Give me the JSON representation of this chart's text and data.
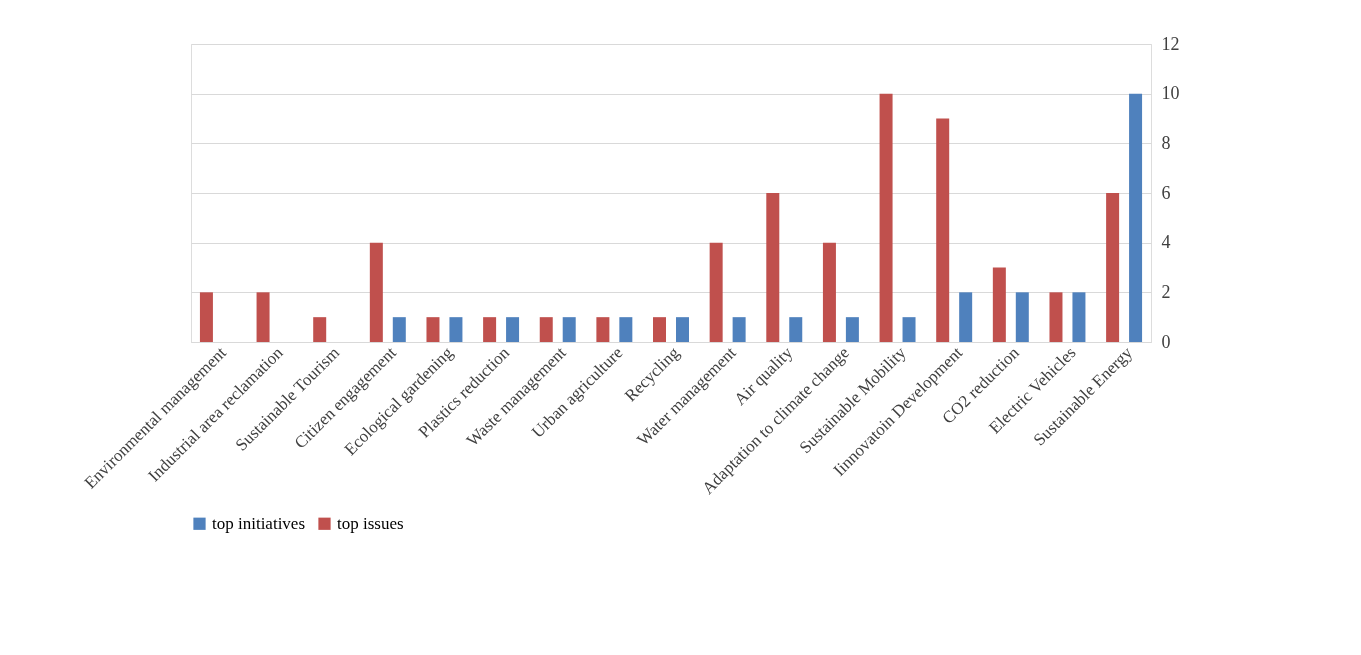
{
  "chart_data": {
    "type": "bar",
    "categories": [
      "Environmental management",
      "Industrial area reclamation",
      "Sustainable Tourism",
      "Citizen engagement",
      "Ecological gardening",
      "Plastics reduction",
      "Waste management",
      "Urban agriculture",
      "Recycling",
      "Water management",
      "Air quality",
      "Adaptation to climate change",
      "Sustainable Mobility",
      "Iinnovatoin Development",
      "CO2 reduction",
      "Electric Vehicles",
      "Sustainable Energy"
    ],
    "series": [
      {
        "name": "top initiatives",
        "color": "#4f81bd",
        "values": [
          0,
          0,
          0,
          1,
          1,
          1,
          1,
          1,
          1,
          1,
          1,
          1,
          1,
          2,
          2,
          2,
          10
        ]
      },
      {
        "name": "top issues",
        "color": "#c0504d",
        "values": [
          2,
          2,
          1,
          4,
          1,
          1,
          1,
          1,
          1,
          4,
          6,
          4,
          10,
          9,
          3,
          2,
          6
        ]
      }
    ],
    "ylim": [
      0,
      12
    ],
    "yticks": [
      0,
      2,
      4,
      6,
      8,
      10,
      12
    ],
    "grid": "y",
    "legend": "bottom"
  }
}
